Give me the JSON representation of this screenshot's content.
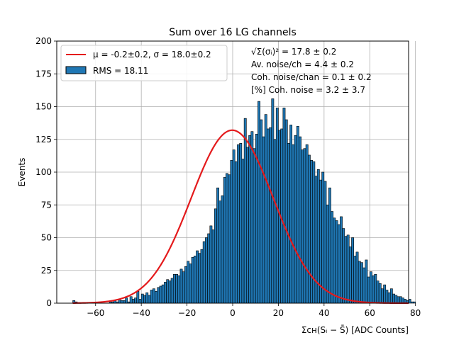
{
  "chart_data": {
    "type": "bar",
    "title": "Sum over 16 LG channels",
    "xlabel": "Σᴄʜ(Sᵢ − S̄) [ADC Counts]",
    "ylabel": "Events",
    "xlim": [
      -77,
      77
    ],
    "ylim": [
      0,
      200
    ],
    "xticks": [
      -60,
      -40,
      -20,
      0,
      20,
      40,
      60,
      80
    ],
    "yticks": [
      0,
      25,
      50,
      75,
      100,
      125,
      150,
      175,
      200
    ],
    "grid": true,
    "legend_position": "top-left",
    "legend": [
      {
        "label": "μ = -0.2±0.2, σ = 18.0±0.2",
        "kind": "line",
        "color": "#e41a1c"
      },
      {
        "label": "RMS = 18.11",
        "kind": "patch",
        "color": "#1f77b4"
      }
    ],
    "annotations": [
      "√Σ(σᵢ)² = 17.8 ± 0.2",
      "Av. noise/ch  = 4.4 ± 0.2",
      "Coh. noise/chan  = 0.1 ± 0.2",
      "[%] Coh. noise  = 3.2 ± 3.7"
    ],
    "bar_color": "#1f77b4",
    "bar_edge_color": "#000000",
    "fit_color": "#e41a1c",
    "fit": {
      "function": "gaussian",
      "mu": -0.2,
      "sigma": 18.0,
      "amplitude": 132,
      "x_range": [
        -70,
        77
      ]
    },
    "histogram": {
      "bin_start": -70,
      "bin_width": 1,
      "counts": [
        2,
        1,
        0,
        0,
        0,
        0,
        0,
        0,
        0,
        0,
        0,
        0,
        0,
        0,
        0,
        0,
        1,
        1,
        2,
        1,
        3,
        2,
        2,
        4,
        1,
        5,
        3,
        4,
        9,
        3,
        7,
        6,
        8,
        6,
        10,
        11,
        9,
        12,
        13,
        14,
        16,
        18,
        17,
        19,
        22,
        22,
        21,
        26,
        24,
        28,
        32,
        30,
        35,
        36,
        40,
        38,
        41,
        47,
        50,
        53,
        59,
        56,
        72,
        88,
        78,
        82,
        96,
        99,
        98,
        109,
        117,
        108,
        121,
        122,
        110,
        141,
        119,
        128,
        131,
        118,
        129,
        154,
        140,
        127,
        144,
        133,
        134,
        156,
        125,
        149,
        132,
        133,
        149,
        140,
        122,
        136,
        121,
        128,
        135,
        127,
        117,
        118,
        121,
        113,
        109,
        108,
        97,
        102,
        94,
        100,
        93,
        75,
        88,
        70,
        65,
        63,
        60,
        66,
        57,
        51,
        52,
        43,
        50,
        36,
        39,
        32,
        31,
        27,
        33,
        20,
        24,
        21,
        22,
        17,
        15,
        11,
        14,
        10,
        8,
        11,
        7,
        6,
        5,
        5,
        4,
        3,
        2,
        3,
        1,
        1
      ]
    }
  }
}
